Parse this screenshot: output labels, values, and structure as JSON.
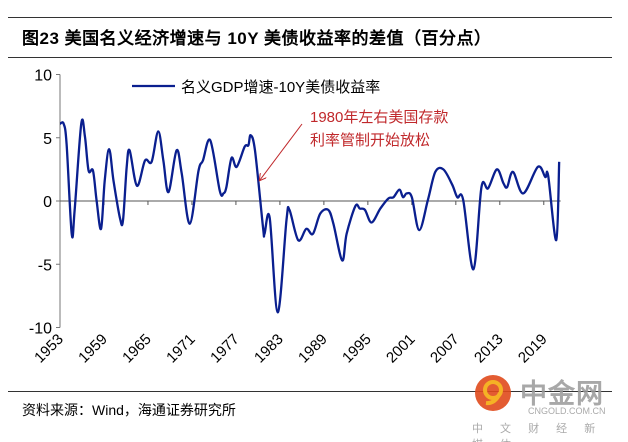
{
  "title": "图23 美国名义经济增速与 10Y 美债收益率的差值（百分点）",
  "source": "资料来源：Wind，海通证券研究所",
  "watermark": {
    "name": "中金网",
    "url": "CNGOLD.COM.CN",
    "tagline": "中 文 财 经 新 媒 体"
  },
  "chart_data": {
    "type": "line",
    "title": "",
    "xlabel": "",
    "ylabel": "",
    "xlim": [
      1953,
      2022
    ],
    "ylim": [
      -10,
      10
    ],
    "yticks": [
      10,
      5,
      0,
      -5,
      -10
    ],
    "xticks": [
      "1953",
      "1959",
      "1965",
      "1971",
      "1977",
      "1983",
      "1989",
      "1995",
      "2001",
      "2007",
      "2013",
      "2019"
    ],
    "grid": false,
    "legend_position": "top",
    "color": "#0a1f8f",
    "annotation": {
      "lines": [
        "1980年左右美国存款",
        "利率管制开始放松"
      ],
      "color": "#c0282b",
      "arrow_target": [
        1980.0,
        1.5
      ]
    },
    "series": [
      {
        "name": "名义GDP增速-10Y美债收益率",
        "x": [
          1953.0,
          1953.5,
          1953.9,
          1954.6,
          1955.0,
          1955.9,
          1956.4,
          1956.9,
          1957.5,
          1958.0,
          1958.6,
          1959.1,
          1959.7,
          1960.3,
          1961.2,
          1961.6,
          1962.1,
          1962.5,
          1963.5,
          1964.6,
          1965.5,
          1966.4,
          1967.1,
          1967.8,
          1968.9,
          1969.6,
          1970.7,
          1971.9,
          1972.5,
          1973.5,
          1974.8,
          1975.3,
          1975.7,
          1976.4,
          1977.1,
          1978.2,
          1978.7,
          1979.0,
          1979.6,
          1980.7,
          1980.9,
          1981.6,
          1982.7,
          1983.9,
          1984.3,
          1985.5,
          1986.6,
          1987.5,
          1988.5,
          1989.6,
          1990.3,
          1991.5,
          1992.1,
          1993.3,
          1993.9,
          1994.6,
          1995.5,
          1996.7,
          1997.8,
          1998.5,
          1999.3,
          1999.8,
          2000.3,
          2001.0,
          2002.0,
          2003.2,
          2004.2,
          2005.3,
          2006.5,
          2007.2,
          2008.0,
          2009.4,
          2010.5,
          2011.4,
          2012.6,
          2013.5,
          2014.0,
          2014.8,
          2016.2,
          2018.2,
          2019.2,
          2019.6,
          2020.7,
          2021.1
        ],
        "y": [
          6.1,
          6.1,
          4.5,
          -2.6,
          -0.7,
          6.1,
          5.1,
          2.4,
          2.4,
          0.0,
          -2.2,
          1.6,
          4.1,
          1.6,
          -1.4,
          -1.5,
          2.7,
          4.0,
          1.2,
          3.2,
          3.1,
          5.5,
          3.2,
          0.7,
          4.0,
          2.2,
          -1.8,
          2.4,
          3.2,
          4.8,
          0.8,
          0.6,
          1.1,
          3.4,
          2.7,
          4.3,
          4.4,
          5.2,
          4.0,
          -2.1,
          -2.6,
          -1.3,
          -8.8,
          -1.5,
          -0.7,
          -3.1,
          -2.2,
          -2.6,
          -1.0,
          -0.7,
          -1.8,
          -4.7,
          -2.6,
          -0.4,
          -0.6,
          -0.7,
          -1.7,
          -0.6,
          0.2,
          0.3,
          0.9,
          0.3,
          0.6,
          0.3,
          -2.3,
          0.1,
          2.3,
          2.5,
          1.3,
          0.3,
          0.1,
          -5.4,
          1.1,
          1.0,
          2.5,
          1.4,
          1.1,
          2.3,
          0.6,
          2.7,
          1.9,
          2.0,
          -3.1,
          3.1
        ]
      }
    ]
  }
}
